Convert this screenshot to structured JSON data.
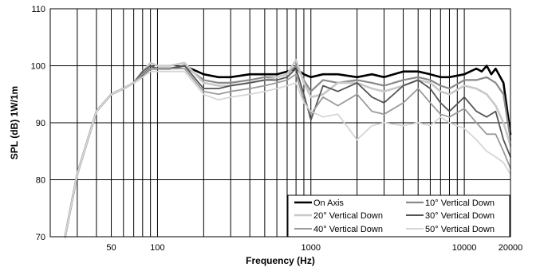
{
  "chart_data": {
    "type": "line",
    "xlabel": "Frequency (Hz)",
    "ylabel": "SPL (dB) 1W/1m",
    "xscale": "log",
    "xlim": [
      20,
      20000
    ],
    "ylim": [
      70,
      110
    ],
    "x_tick_labels": [
      {
        "value": 50,
        "label": "50"
      },
      {
        "value": 100,
        "label": "100"
      },
      {
        "value": 1000,
        "label": "1000"
      },
      {
        "value": 10000,
        "label": "10000"
      },
      {
        "value": 20000,
        "label": "20000"
      }
    ],
    "y_tick_labels": [
      {
        "value": 70,
        "label": "70"
      },
      {
        "value": 80,
        "label": "80"
      },
      {
        "value": 90,
        "label": "90"
      },
      {
        "value": 100,
        "label": "100"
      },
      {
        "value": 110,
        "label": "110"
      }
    ],
    "grid": true,
    "legend_position": "bottom-right",
    "series": [
      {
        "name": "On Axis",
        "color": "#000000",
        "width": 2.6,
        "x": [
          25,
          30,
          40,
          50,
          60,
          70,
          80,
          90,
          100,
          120,
          150,
          200,
          250,
          300,
          400,
          500,
          600,
          700,
          800,
          900,
          1000,
          1200,
          1500,
          2000,
          2500,
          3000,
          4000,
          5000,
          6000,
          7000,
          8000,
          10000,
          12000,
          13000,
          14000,
          15000,
          16000,
          18000,
          20000
        ],
        "y": [
          70,
          81,
          92,
          95,
          96,
          97,
          98.5,
          99.5,
          99.5,
          99.5,
          100,
          98.5,
          98,
          98,
          98.5,
          98.5,
          98.5,
          99,
          99.5,
          98.5,
          98,
          98.5,
          98.5,
          98,
          98.5,
          98,
          99,
          99,
          98.5,
          98,
          98,
          98.5,
          99.5,
          99,
          100,
          98.5,
          99.5,
          97,
          88
        ]
      },
      {
        "name": "10° Vertical Down",
        "color": "#8a8a8a",
        "width": 2.2,
        "x": [
          25,
          30,
          40,
          50,
          60,
          70,
          80,
          90,
          100,
          120,
          150,
          200,
          250,
          300,
          400,
          500,
          600,
          700,
          800,
          900,
          1000,
          1200,
          1500,
          2000,
          2500,
          3000,
          4000,
          5000,
          6000,
          7000,
          8000,
          10000,
          12000,
          14000,
          16000,
          18000,
          20000
        ],
        "y": [
          70,
          81,
          92,
          95,
          96,
          97,
          98,
          99.5,
          99.5,
          99.5,
          100,
          97.5,
          97,
          97,
          97.5,
          98,
          98,
          98.5,
          100,
          97.5,
          95.5,
          97.5,
          97,
          97.5,
          97,
          96.5,
          97.5,
          98,
          97.5,
          96.5,
          96,
          97.5,
          97.5,
          98,
          97,
          95,
          87
        ]
      },
      {
        "name": "20° Vertical Down",
        "color": "#c8c8c8",
        "width": 2.6,
        "x": [
          25,
          30,
          40,
          50,
          60,
          70,
          80,
          90,
          100,
          120,
          150,
          200,
          250,
          300,
          400,
          500,
          600,
          700,
          800,
          900,
          1000,
          1200,
          1500,
          2000,
          2500,
          3000,
          4000,
          5000,
          6000,
          7000,
          8000,
          10000,
          12000,
          14000,
          16000,
          18000,
          20000
        ],
        "y": [
          70,
          81,
          92,
          95,
          96,
          97,
          99,
          100.5,
          100,
          100,
          100.5,
          97,
          96.5,
          96.5,
          97,
          97.5,
          98,
          98.5,
          101,
          97,
          94.5,
          95,
          97,
          97,
          96,
          95.5,
          96.5,
          97.5,
          97,
          95.5,
          95,
          96.5,
          96,
          95,
          93,
          90,
          86
        ]
      },
      {
        "name": "30° Vertical Down",
        "color": "#555555",
        "width": 1.8,
        "x": [
          25,
          30,
          40,
          50,
          60,
          70,
          80,
          90,
          100,
          120,
          150,
          200,
          250,
          300,
          400,
          500,
          600,
          700,
          800,
          900,
          1000,
          1200,
          1500,
          2000,
          2500,
          3000,
          4000,
          5000,
          6000,
          7000,
          8000,
          10000,
          12000,
          14000,
          16000,
          18000,
          20000
        ],
        "y": [
          70,
          81,
          92,
          95,
          96,
          97,
          99,
          100,
          99.5,
          99.5,
          100,
          96,
          96,
          96.5,
          97,
          97.5,
          97.5,
          98,
          99.5,
          95,
          90.5,
          96.5,
          95.5,
          97,
          94.5,
          93.5,
          96.5,
          97.5,
          96,
          93.5,
          92,
          94.5,
          92,
          91,
          92,
          87,
          84
        ]
      },
      {
        "name": "40° Vertical Down",
        "color": "#9a9a9a",
        "width": 1.8,
        "x": [
          25,
          30,
          40,
          50,
          60,
          70,
          80,
          90,
          100,
          120,
          150,
          200,
          250,
          300,
          400,
          500,
          600,
          700,
          800,
          900,
          1000,
          1200,
          1500,
          2000,
          2500,
          3000,
          4000,
          5000,
          6000,
          7000,
          8000,
          10000,
          12000,
          14000,
          16000,
          18000,
          20000
        ],
        "y": [
          70,
          81,
          92,
          95,
          96,
          97,
          98.5,
          99.5,
          99.5,
          99.5,
          99.5,
          95.5,
          95,
          95.5,
          96,
          96.5,
          97,
          97.5,
          98.5,
          94,
          91.5,
          94.5,
          93,
          95,
          92,
          91.5,
          93.5,
          96,
          93.5,
          91.5,
          91,
          92.5,
          90,
          88,
          88,
          85,
          82
        ]
      },
      {
        "name": "50° Vertical Down",
        "color": "#d6d6d6",
        "width": 1.8,
        "x": [
          25,
          30,
          40,
          50,
          60,
          70,
          80,
          90,
          100,
          120,
          150,
          200,
          250,
          300,
          400,
          500,
          600,
          700,
          800,
          900,
          1000,
          1200,
          1500,
          2000,
          2500,
          3000,
          4000,
          5000,
          6000,
          7000,
          8000,
          10000,
          12000,
          14000,
          16000,
          18000,
          20000
        ],
        "y": [
          70,
          81,
          92,
          95,
          96,
          97,
          98,
          99,
          99,
          99,
          99,
          95,
          94,
          94.5,
          95,
          95.5,
          96,
          96.5,
          97,
          93.5,
          92,
          91,
          91.5,
          87,
          89.5,
          90,
          89.5,
          90,
          89.5,
          91,
          90,
          89,
          87,
          85,
          84,
          83,
          81
        ]
      }
    ]
  }
}
